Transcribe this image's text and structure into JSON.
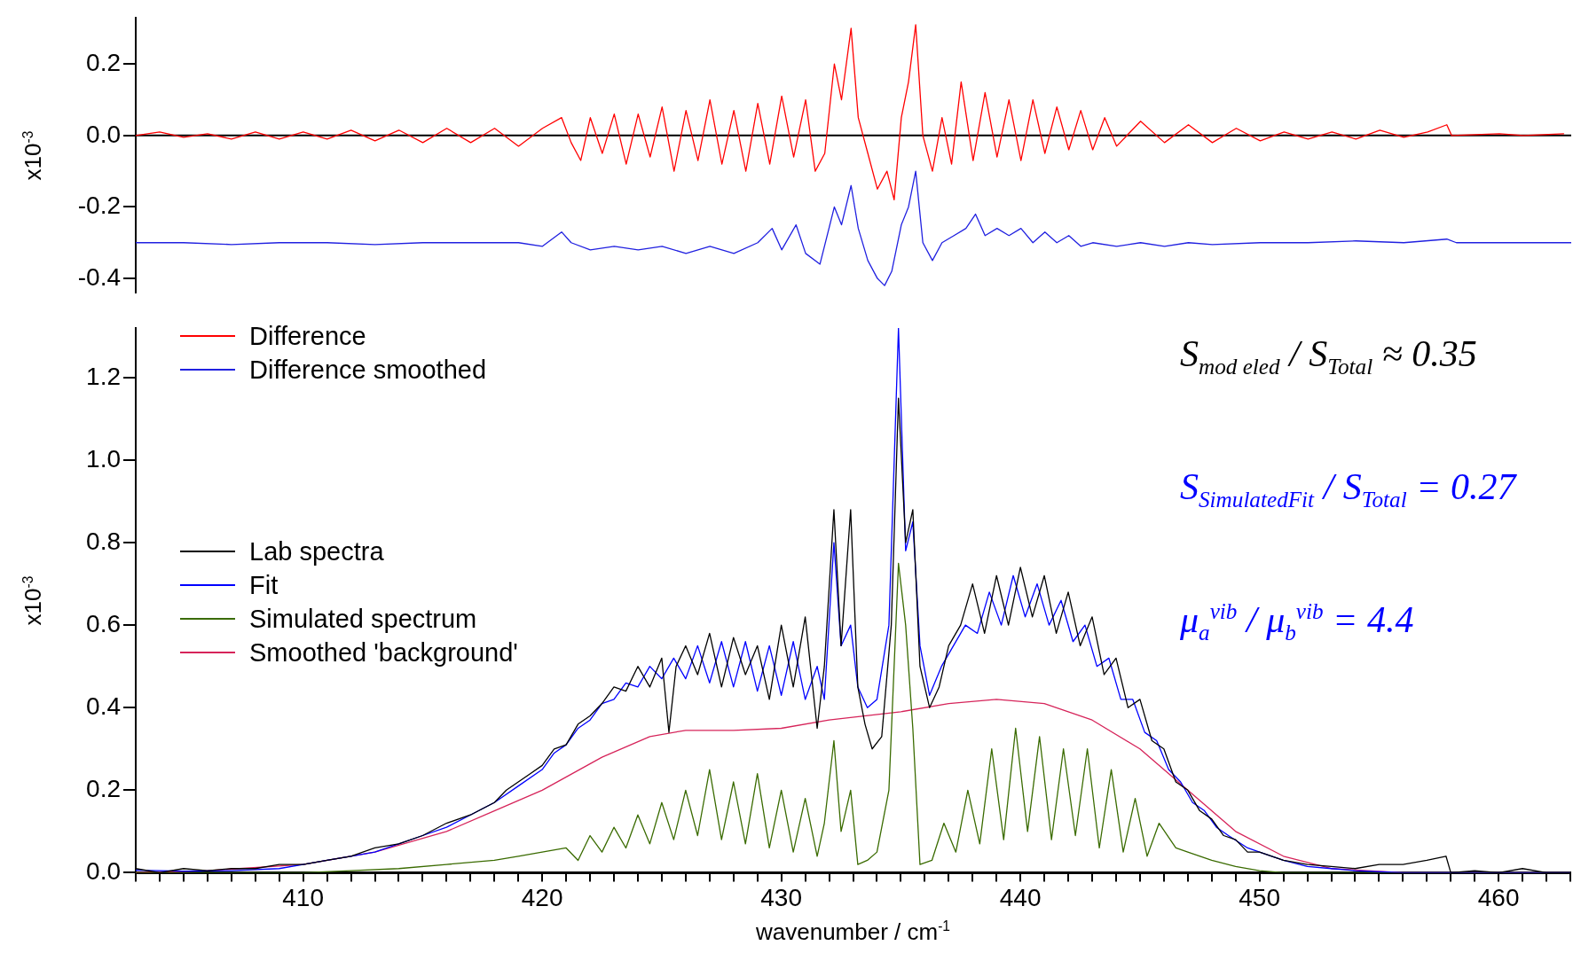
{
  "chart_data": [
    {
      "type": "line",
      "ylabel": "x10$^{-3}$",
      "xlim": [
        403,
        463
      ],
      "ylim": [
        -0.44,
        0.33
      ],
      "yticks": [
        {
          "value": -0.4,
          "label": "-0.4"
        },
        {
          "value": -0.2,
          "label": "-0.2"
        },
        {
          "value": 0,
          "label": "0.0"
        },
        {
          "value": 0.2,
          "label": "0.2"
        }
      ],
      "tick_labels": "y",
      "legend": "bottom left",
      "ref_lines": [
        {
          "axis": "y",
          "value": 0,
          "color": "#000000"
        }
      ],
      "series": [
        {
          "name": "Difference",
          "color": "#ff0000",
          "x": [
            403,
            404,
            405,
            406,
            407,
            408,
            409,
            410,
            411,
            412,
            413,
            414,
            415,
            416,
            417,
            418,
            419,
            420,
            420.8,
            421.2,
            421.6,
            422,
            422.5,
            423,
            423.5,
            424,
            424.5,
            425,
            425.5,
            426,
            426.5,
            427,
            427.5,
            428,
            428.5,
            429,
            429.5,
            430,
            430.5,
            431,
            431.4,
            431.8,
            432.2,
            432.5,
            432.9,
            433.2,
            433.6,
            434,
            434.4,
            434.7,
            435,
            435.3,
            435.6,
            435.9,
            436.3,
            436.7,
            437.1,
            437.5,
            438,
            438.5,
            439,
            439.5,
            440,
            440.5,
            441,
            441.5,
            442,
            442.5,
            443,
            443.5,
            444,
            445,
            446,
            447,
            448,
            449,
            450,
            451,
            452,
            453,
            454,
            455,
            456,
            457,
            457.8,
            458,
            460,
            461,
            462.7
          ],
          "values": [
            0,
            0.01,
            -0.005,
            0.005,
            -0.01,
            0.01,
            -0.01,
            0.01,
            -0.01,
            0.015,
            -0.015,
            0.015,
            -0.02,
            0.02,
            -0.02,
            0.02,
            -0.03,
            0.02,
            0.05,
            -0.02,
            -0.07,
            0.05,
            -0.05,
            0.06,
            -0.08,
            0.06,
            -0.06,
            0.08,
            -0.1,
            0.07,
            -0.07,
            0.1,
            -0.08,
            0.07,
            -0.1,
            0.09,
            -0.08,
            0.11,
            -0.06,
            0.1,
            -0.1,
            -0.05,
            0.2,
            0.1,
            0.3,
            0.05,
            -0.05,
            -0.15,
            -0.1,
            -0.18,
            0.05,
            0.15,
            0.31,
            0,
            -0.1,
            0.05,
            -0.08,
            0.15,
            -0.07,
            0.12,
            -0.06,
            0.1,
            -0.07,
            0.1,
            -0.05,
            0.08,
            -0.04,
            0.07,
            -0.04,
            0.05,
            -0.03,
            0.04,
            -0.02,
            0.03,
            -0.02,
            0.02,
            -0.015,
            0.01,
            -0.01,
            0.01,
            -0.01,
            0.015,
            -0.005,
            0.01,
            0.03,
            0,
            0.005,
            0,
            0.005
          ]
        },
        {
          "name": "Difference smoothed",
          "color": "#2020e0",
          "x": [
            403,
            405,
            407,
            409,
            411,
            413,
            415,
            417,
            419,
            420,
            420.8,
            421.2,
            422,
            423,
            424,
            425,
            426,
            427,
            428,
            429,
            429.6,
            430,
            430.6,
            431,
            431.6,
            432.2,
            432.5,
            432.9,
            433.2,
            433.6,
            434,
            434.3,
            434.6,
            435,
            435.3,
            435.6,
            435.9,
            436.3,
            436.7,
            437.2,
            437.7,
            438.1,
            438.5,
            439,
            439.5,
            440,
            440.5,
            441,
            441.5,
            442,
            442.5,
            443,
            444,
            445,
            446,
            447,
            448,
            450,
            452,
            454,
            456,
            457.8,
            458.2,
            460,
            463
          ],
          "values": [
            -0.3,
            -0.3,
            -0.305,
            -0.3,
            -0.3,
            -0.305,
            -0.3,
            -0.3,
            -0.3,
            -0.31,
            -0.27,
            -0.3,
            -0.32,
            -0.31,
            -0.32,
            -0.31,
            -0.33,
            -0.31,
            -0.33,
            -0.3,
            -0.26,
            -0.32,
            -0.25,
            -0.33,
            -0.36,
            -0.2,
            -0.25,
            -0.14,
            -0.26,
            -0.35,
            -0.4,
            -0.42,
            -0.38,
            -0.25,
            -0.2,
            -0.1,
            -0.3,
            -0.35,
            -0.3,
            -0.28,
            -0.26,
            -0.22,
            -0.28,
            -0.26,
            -0.28,
            -0.26,
            -0.3,
            -0.27,
            -0.3,
            -0.28,
            -0.31,
            -0.3,
            -0.31,
            -0.3,
            -0.31,
            -0.3,
            -0.305,
            -0.3,
            -0.3,
            -0.295,
            -0.3,
            -0.29,
            -0.3,
            -0.3,
            -0.3
          ]
        }
      ]
    },
    {
      "type": "line",
      "ylabel": "x10$^{-3}$",
      "xlabel": "wavenumber / cm$^{-1}$",
      "xlim": [
        403,
        463
      ],
      "ylim": [
        0,
        1.32
      ],
      "xticks": [
        {
          "value": 403,
          "label": null
        },
        {
          "value": 404,
          "label": null
        },
        {
          "value": 405,
          "label": null
        },
        {
          "value": 406,
          "label": null
        },
        {
          "value": 407,
          "label": null
        },
        {
          "value": 408,
          "label": null
        },
        {
          "value": 409,
          "label": null
        },
        410,
        {
          "value": 411,
          "label": null
        },
        {
          "value": 412,
          "label": null
        },
        {
          "value": 413,
          "label": null
        },
        {
          "value": 414,
          "label": null
        },
        {
          "value": 415,
          "label": null
        },
        {
          "value": 416,
          "label": null
        },
        {
          "value": 417,
          "label": null
        },
        {
          "value": 418,
          "label": null
        },
        {
          "value": 419,
          "label": null
        },
        420,
        {
          "value": 421,
          "label": null
        },
        {
          "value": 422,
          "label": null
        },
        {
          "value": 423,
          "label": null
        },
        {
          "value": 424,
          "label": null
        },
        {
          "value": 425,
          "label": null
        },
        {
          "value": 426,
          "label": null
        },
        {
          "value": 427,
          "label": null
        },
        {
          "value": 428,
          "label": null
        },
        {
          "value": 429,
          "label": null
        },
        430,
        {
          "value": 431,
          "label": null
        },
        {
          "value": 432,
          "label": null
        },
        {
          "value": 433,
          "label": null
        },
        {
          "value": 434,
          "label": null
        },
        {
          "value": 435,
          "label": null
        },
        {
          "value": 436,
          "label": null
        },
        {
          "value": 437,
          "label": null
        },
        {
          "value": 438,
          "label": null
        },
        {
          "value": 439,
          "label": null
        },
        440,
        {
          "value": 441,
          "label": null
        },
        {
          "value": 442,
          "label": null
        },
        {
          "value": 443,
          "label": null
        },
        {
          "value": 444,
          "label": null
        },
        {
          "value": 445,
          "label": null
        },
        {
          "value": 446,
          "label": null
        },
        {
          "value": 447,
          "label": null
        },
        {
          "value": 448,
          "label": null
        },
        {
          "value": 449,
          "label": null
        },
        450,
        {
          "value": 451,
          "label": null
        },
        {
          "value": 452,
          "label": null
        },
        {
          "value": 453,
          "label": null
        },
        {
          "value": 454,
          "label": null
        },
        {
          "value": 455,
          "label": null
        },
        {
          "value": 456,
          "label": null
        },
        {
          "value": 457,
          "label": null
        },
        {
          "value": 458,
          "label": null
        },
        {
          "value": 459,
          "label": null
        },
        460,
        {
          "value": 461,
          "label": null
        },
        {
          "value": 462,
          "label": null
        },
        {
          "value": 463,
          "label": null
        }
      ],
      "yticks": [
        {
          "value": 0,
          "label": "0.0"
        },
        {
          "value": 0.2,
          "label": "0.2"
        },
        {
          "value": 0.4,
          "label": "0.4"
        },
        {
          "value": 0.6,
          "label": "0.6"
        },
        {
          "value": 0.8,
          "label": "0.8"
        },
        {
          "value": 1,
          "label": "1.0"
        },
        {
          "value": 1.2,
          "label": "1.2"
        }
      ],
      "legend": "left",
      "annotations": [
        "S$_{mod eled}$ / S$_{Total}$ ≈ 0.35",
        "S$_{SimulatedFit}$ / S$_{Total}$ = 0.27",
        "μ$_{a}$$^{vib}$ / μ$_{b}$$^{vib}$ = 4.4"
      ],
      "series": [
        {
          "name": "Lab spectra",
          "color": "#000000",
          "x": [
            403,
            404,
            405,
            406,
            407,
            408,
            409,
            410,
            411,
            412,
            413,
            414,
            415,
            416,
            417,
            418,
            418.5,
            419,
            419.5,
            420,
            420.5,
            421,
            421.5,
            422,
            422.5,
            423,
            423.5,
            424,
            424.5,
            425,
            425.3,
            425.6,
            426,
            426.5,
            427,
            427.5,
            428,
            428.5,
            429,
            429.5,
            430,
            430.5,
            431,
            431.5,
            431.8,
            432.2,
            432.5,
            432.9,
            433.2,
            433.5,
            433.8,
            434.2,
            434.6,
            434.9,
            435.2,
            435.5,
            435.8,
            436.2,
            436.6,
            437,
            437.5,
            438,
            438.5,
            439,
            439.5,
            440,
            440.5,
            441,
            441.5,
            442,
            442.5,
            443,
            443.5,
            444,
            444.5,
            445,
            445.5,
            446,
            446.5,
            447,
            447.5,
            448,
            448.5,
            449,
            449.5,
            450,
            451,
            452,
            453,
            454,
            455,
            456,
            457,
            457.8,
            458,
            459,
            460,
            461,
            462,
            463
          ],
          "values": [
            0.01,
            0,
            0.01,
            0.005,
            0.01,
            0.01,
            0.02,
            0.02,
            0.03,
            0.04,
            0.06,
            0.07,
            0.09,
            0.12,
            0.14,
            0.17,
            0.2,
            0.22,
            0.24,
            0.26,
            0.3,
            0.31,
            0.36,
            0.38,
            0.41,
            0.45,
            0.44,
            0.5,
            0.45,
            0.52,
            0.34,
            0.5,
            0.55,
            0.48,
            0.58,
            0.45,
            0.57,
            0.48,
            0.55,
            0.42,
            0.6,
            0.45,
            0.62,
            0.35,
            0.5,
            0.88,
            0.55,
            0.88,
            0.45,
            0.36,
            0.3,
            0.33,
            0.6,
            1.15,
            0.8,
            0.88,
            0.5,
            0.4,
            0.45,
            0.55,
            0.6,
            0.7,
            0.58,
            0.72,
            0.6,
            0.74,
            0.62,
            0.72,
            0.58,
            0.68,
            0.55,
            0.62,
            0.48,
            0.52,
            0.4,
            0.42,
            0.32,
            0.3,
            0.22,
            0.2,
            0.15,
            0.13,
            0.09,
            0.08,
            0.05,
            0.05,
            0.03,
            0.02,
            0.015,
            0.01,
            0.02,
            0.02,
            0.03,
            0.04,
            0,
            0.005,
            0,
            0.01,
            0,
            0
          ]
        },
        {
          "name": "Fit",
          "color": "#0000ff",
          "x": [
            403,
            405,
            407,
            409,
            410,
            411,
            412,
            413,
            414,
            415,
            416,
            417,
            418,
            419,
            420,
            420.5,
            421,
            421.5,
            422,
            422.5,
            423,
            423.5,
            424,
            424.5,
            425,
            425.5,
            426,
            426.5,
            427,
            427.5,
            428,
            428.5,
            429,
            429.5,
            430,
            430.5,
            431,
            431.5,
            431.8,
            432.2,
            432.5,
            432.9,
            433.2,
            433.6,
            434,
            434.5,
            434.9,
            435.2,
            435.5,
            435.8,
            436.2,
            436.7,
            437.2,
            437.7,
            438.2,
            438.7,
            439.2,
            439.7,
            440.2,
            440.7,
            441.2,
            441.7,
            442.2,
            442.7,
            443.2,
            443.7,
            444.2,
            444.7,
            445.2,
            445.7,
            446.2,
            446.7,
            447.2,
            447.7,
            448.2,
            448.7,
            449.5,
            450,
            451,
            452,
            453,
            454,
            456,
            463
          ],
          "values": [
            0.006,
            0.004,
            0.005,
            0.01,
            0.02,
            0.03,
            0.04,
            0.05,
            0.07,
            0.09,
            0.11,
            0.14,
            0.17,
            0.21,
            0.25,
            0.29,
            0.31,
            0.35,
            0.37,
            0.41,
            0.42,
            0.46,
            0.45,
            0.5,
            0.47,
            0.52,
            0.47,
            0.55,
            0.46,
            0.56,
            0.45,
            0.56,
            0.44,
            0.55,
            0.43,
            0.56,
            0.42,
            0.5,
            0.42,
            0.8,
            0.55,
            0.6,
            0.45,
            0.4,
            0.42,
            0.6,
            1.32,
            0.78,
            0.85,
            0.55,
            0.43,
            0.5,
            0.55,
            0.6,
            0.58,
            0.68,
            0.6,
            0.72,
            0.62,
            0.7,
            0.6,
            0.66,
            0.56,
            0.6,
            0.5,
            0.52,
            0.42,
            0.42,
            0.34,
            0.32,
            0.25,
            0.22,
            0.17,
            0.15,
            0.11,
            0.09,
            0.06,
            0.05,
            0.03,
            0.015,
            0.01,
            0.005,
            0,
            0
          ]
        },
        {
          "name": "Simulated spectrum",
          "color": "#3a6b00",
          "x": [
            403,
            410,
            412,
            414,
            416,
            418,
            419,
            420,
            421,
            421.5,
            422,
            422.5,
            423,
            423.5,
            424,
            424.5,
            425,
            425.5,
            426,
            426.5,
            427,
            427.5,
            428,
            428.5,
            429,
            429.5,
            430,
            430.5,
            431,
            431.5,
            431.8,
            432.2,
            432.5,
            432.9,
            433.2,
            433.6,
            434,
            434.5,
            434.9,
            435.2,
            435.5,
            435.8,
            436.3,
            436.8,
            437.3,
            437.8,
            438.3,
            438.8,
            439.3,
            439.8,
            440.3,
            440.8,
            441.3,
            441.8,
            442.3,
            442.8,
            443.3,
            443.8,
            444.3,
            444.8,
            445.3,
            445.8,
            446.5,
            447,
            448,
            449,
            450,
            451,
            463
          ],
          "values": [
            0,
            0,
            0.005,
            0.01,
            0.02,
            0.03,
            0.04,
            0.05,
            0.06,
            0.03,
            0.09,
            0.05,
            0.11,
            0.06,
            0.14,
            0.07,
            0.17,
            0.08,
            0.2,
            0.09,
            0.25,
            0.08,
            0.22,
            0.07,
            0.24,
            0.06,
            0.2,
            0.05,
            0.18,
            0.04,
            0.12,
            0.32,
            0.1,
            0.2,
            0.02,
            0.03,
            0.05,
            0.2,
            0.75,
            0.6,
            0.35,
            0.02,
            0.03,
            0.12,
            0.05,
            0.2,
            0.07,
            0.3,
            0.08,
            0.35,
            0.1,
            0.33,
            0.08,
            0.3,
            0.09,
            0.3,
            0.06,
            0.25,
            0.05,
            0.18,
            0.04,
            0.12,
            0.06,
            0.05,
            0.03,
            0.015,
            0.005,
            0,
            0
          ]
        },
        {
          "name": "Smoothed 'background'",
          "color": "#d6245a",
          "x": [
            403,
            406,
            410,
            413,
            416,
            418,
            420,
            422.5,
            424.5,
            426,
            428,
            430,
            432,
            435,
            437,
            439,
            441,
            443,
            445,
            447,
            449,
            451,
            453,
            456,
            463
          ],
          "values": [
            0,
            0.005,
            0.02,
            0.05,
            0.1,
            0.15,
            0.2,
            0.28,
            0.33,
            0.345,
            0.345,
            0.35,
            0.37,
            0.39,
            0.41,
            0.42,
            0.41,
            0.37,
            0.3,
            0.2,
            0.1,
            0.04,
            0.01,
            0,
            0
          ]
        }
      ]
    }
  ]
}
